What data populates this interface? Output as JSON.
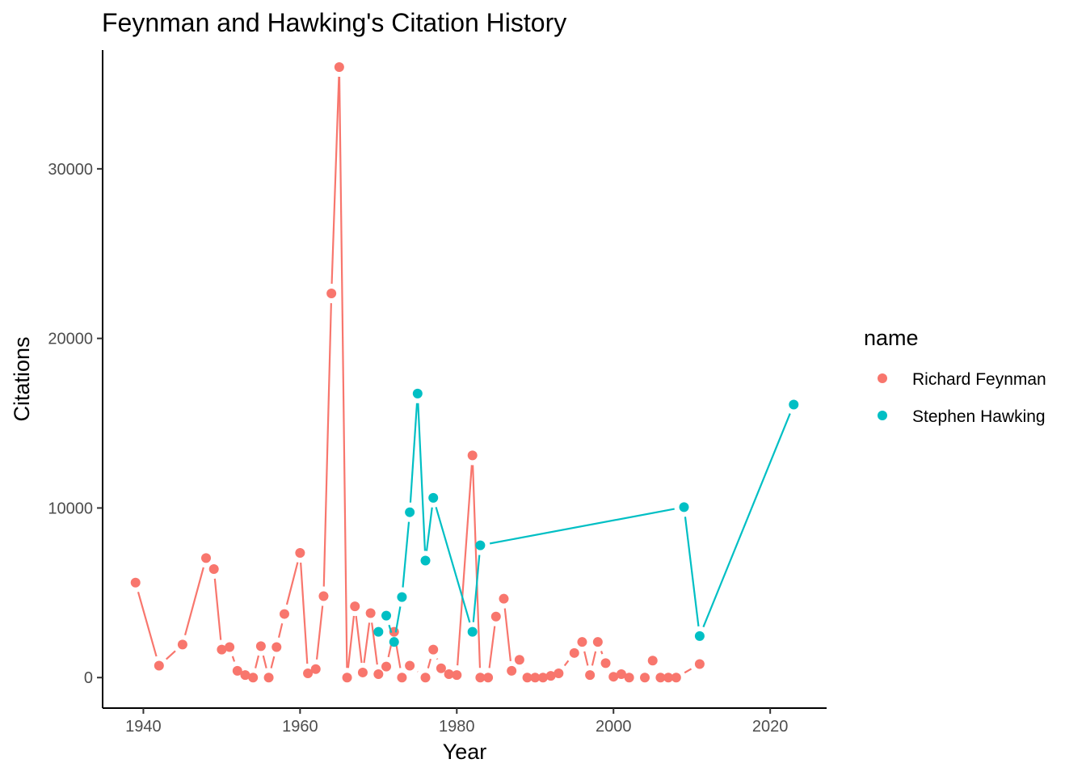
{
  "chart_data": {
    "type": "line",
    "title": "Feynman and Hawking's Citation History",
    "xlabel": "Year",
    "ylabel": "Citations",
    "xlim": [
      1934.8,
      2027.2
    ],
    "ylim": [
      -1800,
      37000
    ],
    "x_ticks": [
      1940,
      1960,
      1980,
      2000,
      2020
    ],
    "y_ticks": [
      0,
      10000,
      20000,
      30000
    ],
    "grid": false,
    "legend": {
      "title": "name",
      "position": "right"
    },
    "series": [
      {
        "name": "Richard Feynman",
        "color": "#F8766D",
        "points": [
          [
            1939,
            5600
          ],
          [
            1942,
            700
          ],
          [
            1945,
            1950
          ],
          [
            1948,
            7050
          ],
          [
            1949,
            6400
          ],
          [
            1950,
            1650
          ],
          [
            1951,
            1800
          ],
          [
            1952,
            400
          ],
          [
            1953,
            150
          ],
          [
            1954,
            0
          ],
          [
            1955,
            1850
          ],
          [
            1956,
            0
          ],
          [
            1957,
            1800
          ],
          [
            1958,
            3750
          ],
          [
            1960,
            7350
          ],
          [
            1961,
            250
          ],
          [
            1962,
            500
          ],
          [
            1963,
            4800
          ],
          [
            1964,
            22650
          ],
          [
            1965,
            36000
          ],
          [
            1966,
            0
          ],
          [
            1967,
            4200
          ],
          [
            1968,
            300
          ],
          [
            1969,
            3800
          ],
          [
            1970,
            200
          ],
          [
            1971,
            650
          ],
          [
            1972,
            2700
          ],
          [
            1973,
            0
          ],
          [
            1974,
            700
          ],
          [
            1976,
            0
          ],
          [
            1977,
            1650
          ],
          [
            1978,
            550
          ],
          [
            1979,
            200
          ],
          [
            1980,
            150
          ],
          [
            1982,
            13100
          ],
          [
            1983,
            0
          ],
          [
            1984,
            0
          ],
          [
            1985,
            3600
          ],
          [
            1986,
            4650
          ],
          [
            1987,
            400
          ],
          [
            1988,
            1050
          ],
          [
            1989,
            0
          ],
          [
            1990,
            0
          ],
          [
            1991,
            0
          ],
          [
            1992,
            100
          ],
          [
            1993,
            250
          ],
          [
            1995,
            1450
          ],
          [
            1996,
            2100
          ],
          [
            1997,
            150
          ],
          [
            1998,
            2100
          ],
          [
            1999,
            850
          ],
          [
            2000,
            50
          ],
          [
            2001,
            200
          ],
          [
            2002,
            0
          ],
          [
            2004,
            0
          ],
          [
            2005,
            1000
          ],
          [
            2006,
            0
          ],
          [
            2007,
            0
          ],
          [
            2008,
            0
          ],
          [
            2011,
            800
          ]
        ]
      },
      {
        "name": "Stephen Hawking",
        "color": "#00BFC4",
        "points": [
          [
            1970,
            2700
          ],
          [
            1971,
            3650
          ],
          [
            1972,
            2100
          ],
          [
            1973,
            4750
          ],
          [
            1974,
            9750
          ],
          [
            1975,
            16750
          ],
          [
            1976,
            6900
          ],
          [
            1977,
            10600
          ],
          [
            1982,
            2700
          ],
          [
            1983,
            7800
          ],
          [
            2009,
            10050
          ],
          [
            2011,
            2450
          ],
          [
            2023,
            16100
          ]
        ]
      }
    ]
  }
}
